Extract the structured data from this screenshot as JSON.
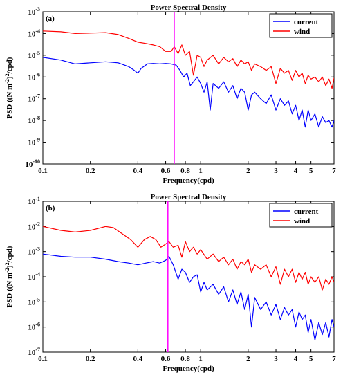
{
  "colors": {
    "current": "#0000ff",
    "wind": "#ff0000",
    "marker_line": "#ff00ff",
    "axes": "#000000"
  },
  "chart_data": [
    {
      "type": "line",
      "panel_label": "(a)",
      "title": "Power Spectral Density",
      "xlabel": "Frequency(cpd)",
      "ylabel_main": "PSD ((N m",
      "ylabel_sup1": "-2",
      "ylabel_mid": ")",
      "ylabel_sup2": "2",
      "ylabel_end": "/cpd)",
      "x_scale": "log",
      "y_scale": "log",
      "xlim": [
        0.1,
        7
      ],
      "ylim": [
        1e-10,
        0.001
      ],
      "x_ticks": [
        0.1,
        0.2,
        0.4,
        0.6,
        0.8,
        1,
        2,
        3,
        4,
        5,
        7
      ],
      "x_tick_labels": [
        "0.1",
        "0.2",
        "0.4",
        "0.6",
        "0.8",
        "1",
        "2",
        "3",
        "4",
        "5",
        "7"
      ],
      "y_ticks": [
        1e-10,
        1e-09,
        1e-08,
        1e-07,
        1e-06,
        1e-05,
        0.0001,
        0.001
      ],
      "y_tick_exponents": [
        "-10",
        "-9",
        "-8",
        "-7",
        "-6",
        "-5",
        "-4",
        "-3"
      ],
      "vertical_line_x": 0.68,
      "legend_placement": "top-right",
      "series": [
        {
          "name": "current",
          "x": [
            0.1,
            0.13,
            0.16,
            0.2,
            0.25,
            0.3,
            0.35,
            0.38,
            0.4,
            0.42,
            0.46,
            0.5,
            0.55,
            0.6,
            0.65,
            0.7,
            0.74,
            0.78,
            0.82,
            0.86,
            0.9,
            0.95,
            1.0,
            1.05,
            1.1,
            1.15,
            1.2,
            1.3,
            1.4,
            1.5,
            1.6,
            1.7,
            1.8,
            1.9,
            2.0,
            2.1,
            2.2,
            2.4,
            2.6,
            2.8,
            3.0,
            3.2,
            3.4,
            3.6,
            3.8,
            4.0,
            4.2,
            4.4,
            4.6,
            4.8,
            5.0,
            5.3,
            5.6,
            5.9,
            6.2,
            6.5,
            6.8,
            7.0
          ],
          "y": [
            8e-06,
            6e-06,
            4e-06,
            4.5e-06,
            5e-06,
            4.5e-06,
            3e-06,
            2e-06,
            1.5e-06,
            2.5e-06,
            4e-06,
            4.2e-06,
            4e-06,
            4.2e-06,
            4e-06,
            3.5e-06,
            2e-06,
            1e-06,
            1.5e-06,
            4e-07,
            6e-07,
            1e-06,
            5e-07,
            2e-07,
            6e-07,
            3e-08,
            5e-07,
            3e-07,
            6e-07,
            2e-07,
            4e-07,
            1e-07,
            3e-07,
            2e-07,
            3e-08,
            1.5e-07,
            2e-07,
            1e-07,
            6e-08,
            1.5e-07,
            3e-08,
            1e-07,
            5e-08,
            8e-08,
            2e-08,
            5e-08,
            1e-08,
            3e-08,
            5e-09,
            3e-08,
            1e-08,
            2e-08,
            5e-09,
            1.5e-08,
            8e-09,
            1e-08,
            5e-09,
            1e-08
          ]
        },
        {
          "name": "wind",
          "x": [
            0.1,
            0.13,
            0.16,
            0.2,
            0.25,
            0.3,
            0.35,
            0.4,
            0.45,
            0.5,
            0.55,
            0.6,
            0.65,
            0.68,
            0.72,
            0.76,
            0.8,
            0.85,
            0.9,
            0.95,
            1.0,
            1.05,
            1.1,
            1.2,
            1.3,
            1.4,
            1.5,
            1.6,
            1.7,
            1.8,
            1.9,
            2.0,
            2.1,
            2.2,
            2.4,
            2.6,
            2.8,
            3.0,
            3.2,
            3.4,
            3.6,
            3.8,
            4.0,
            4.2,
            4.4,
            4.6,
            4.8,
            5.0,
            5.3,
            5.6,
            5.9,
            6.2,
            6.5,
            6.8,
            7.0
          ],
          "y": [
            0.00013,
            0.00012,
            0.0001,
            0.000105,
            0.00011,
            9e-05,
            6e-05,
            4e-05,
            3.5e-05,
            3e-05,
            2.5e-05,
            1.5e-05,
            1.5e-05,
            2.5e-05,
            1.2e-05,
            3e-05,
            1e-05,
            1.5e-05,
            1.2e-06,
            1e-05,
            8e-06,
            3e-06,
            6e-06,
            1e-05,
            4e-06,
            8e-06,
            5e-06,
            7e-06,
            3e-06,
            6e-06,
            4e-06,
            5e-06,
            2e-06,
            4e-06,
            3e-06,
            2e-06,
            3e-06,
            5e-07,
            2.5e-06,
            1.5e-06,
            2e-06,
            7e-07,
            2e-06,
            1e-06,
            1.5e-06,
            5e-07,
            1.2e-06,
            8e-07,
            1e-06,
            6e-07,
            1e-06,
            4e-07,
            8e-07,
            3e-07,
            9e-07
          ]
        }
      ]
    },
    {
      "type": "line",
      "panel_label": "(b)",
      "title": "Power Spectral Density",
      "xlabel": "Frequency(cpd)",
      "ylabel_main": "PSD ((N m",
      "ylabel_sup1": "-2",
      "ylabel_mid": ")",
      "ylabel_sup2": "2",
      "ylabel_end": "/cpd)",
      "x_scale": "log",
      "y_scale": "log",
      "xlim": [
        0.1,
        7
      ],
      "ylim": [
        1e-07,
        0.1
      ],
      "x_ticks": [
        0.1,
        0.2,
        0.4,
        0.6,
        0.8,
        1,
        2,
        3,
        4,
        5,
        7
      ],
      "x_tick_labels": [
        "0.1",
        "0.2",
        "0.4",
        "0.6",
        "0.8",
        "1",
        "2",
        "3",
        "4",
        "5",
        "7"
      ],
      "y_ticks": [
        1e-07,
        1e-06,
        1e-05,
        0.0001,
        0.001,
        0.01,
        0.1
      ],
      "y_tick_exponents": [
        "-7",
        "-6",
        "-5",
        "-4",
        "-3",
        "-2",
        "-1"
      ],
      "vertical_line_x": 0.62,
      "legend_placement": "top-right",
      "series": [
        {
          "name": "current",
          "x": [
            0.1,
            0.13,
            0.16,
            0.2,
            0.25,
            0.3,
            0.35,
            0.4,
            0.45,
            0.5,
            0.55,
            0.6,
            0.63,
            0.67,
            0.72,
            0.76,
            0.8,
            0.85,
            0.9,
            0.95,
            1.0,
            1.05,
            1.1,
            1.2,
            1.3,
            1.4,
            1.5,
            1.6,
            1.7,
            1.8,
            1.9,
            2.0,
            2.1,
            2.2,
            2.4,
            2.6,
            2.8,
            3.0,
            3.2,
            3.4,
            3.6,
            3.8,
            4.0,
            4.2,
            4.4,
            4.6,
            4.8,
            5.0,
            5.3,
            5.6,
            5.9,
            6.2,
            6.5,
            6.8,
            7.0
          ],
          "y": [
            0.0008,
            0.00065,
            0.0006,
            0.0006,
            0.0005,
            0.0004,
            0.00035,
            0.0003,
            0.00035,
            0.0004,
            0.00035,
            0.00045,
            0.00065,
            0.0003,
            8e-05,
            0.0002,
            0.00015,
            6e-05,
            0.0001,
            0.00012,
            2.5e-05,
            6e-05,
            3e-05,
            5e-05,
            2e-05,
            4e-05,
            1e-05,
            3e-05,
            8e-06,
            2.5e-05,
            5e-06,
            2e-05,
            1e-06,
            1.5e-05,
            5e-06,
            1e-05,
            3e-06,
            8e-06,
            2e-06,
            6e-06,
            3e-06,
            5e-06,
            1e-06,
            4e-06,
            2e-06,
            3e-06,
            6e-07,
            2e-06,
            3e-07,
            1.5e-06,
            5e-07,
            1.5e-06,
            4e-07,
            2e-06,
            1e-06
          ]
        },
        {
          "name": "wind",
          "x": [
            0.1,
            0.13,
            0.16,
            0.2,
            0.25,
            0.28,
            0.32,
            0.36,
            0.4,
            0.44,
            0.48,
            0.52,
            0.56,
            0.6,
            0.63,
            0.67,
            0.72,
            0.76,
            0.8,
            0.85,
            0.9,
            0.95,
            1.0,
            1.1,
            1.2,
            1.3,
            1.4,
            1.5,
            1.6,
            1.7,
            1.8,
            1.9,
            2.0,
            2.1,
            2.2,
            2.4,
            2.6,
            2.8,
            3.0,
            3.2,
            3.4,
            3.6,
            3.8,
            4.0,
            4.2,
            4.4,
            4.6,
            4.8,
            5.0,
            5.3,
            5.6,
            5.9,
            6.2,
            6.5,
            6.8,
            7.0
          ],
          "y": [
            0.01,
            0.007,
            0.006,
            0.007,
            0.01,
            0.009,
            0.005,
            0.003,
            0.0015,
            0.003,
            0.004,
            0.003,
            0.0015,
            0.002,
            0.0025,
            0.0015,
            0.0018,
            0.0006,
            0.0025,
            0.001,
            0.0015,
            0.0008,
            0.0012,
            0.0005,
            0.0008,
            0.0004,
            0.0006,
            0.0003,
            0.0005,
            0.0002,
            0.0004,
            0.0003,
            0.0005,
            0.00015,
            0.0003,
            0.0002,
            0.0003,
            0.0001,
            0.00025,
            5e-05,
            0.0002,
            0.0001,
            0.0002,
            6e-05,
            0.00015,
            8e-05,
            0.00015,
            5e-05,
            0.0001,
            6e-05,
            0.0001,
            3e-05,
            8e-05,
            5e-05,
            0.0001,
            6e-05
          ]
        }
      ]
    }
  ]
}
